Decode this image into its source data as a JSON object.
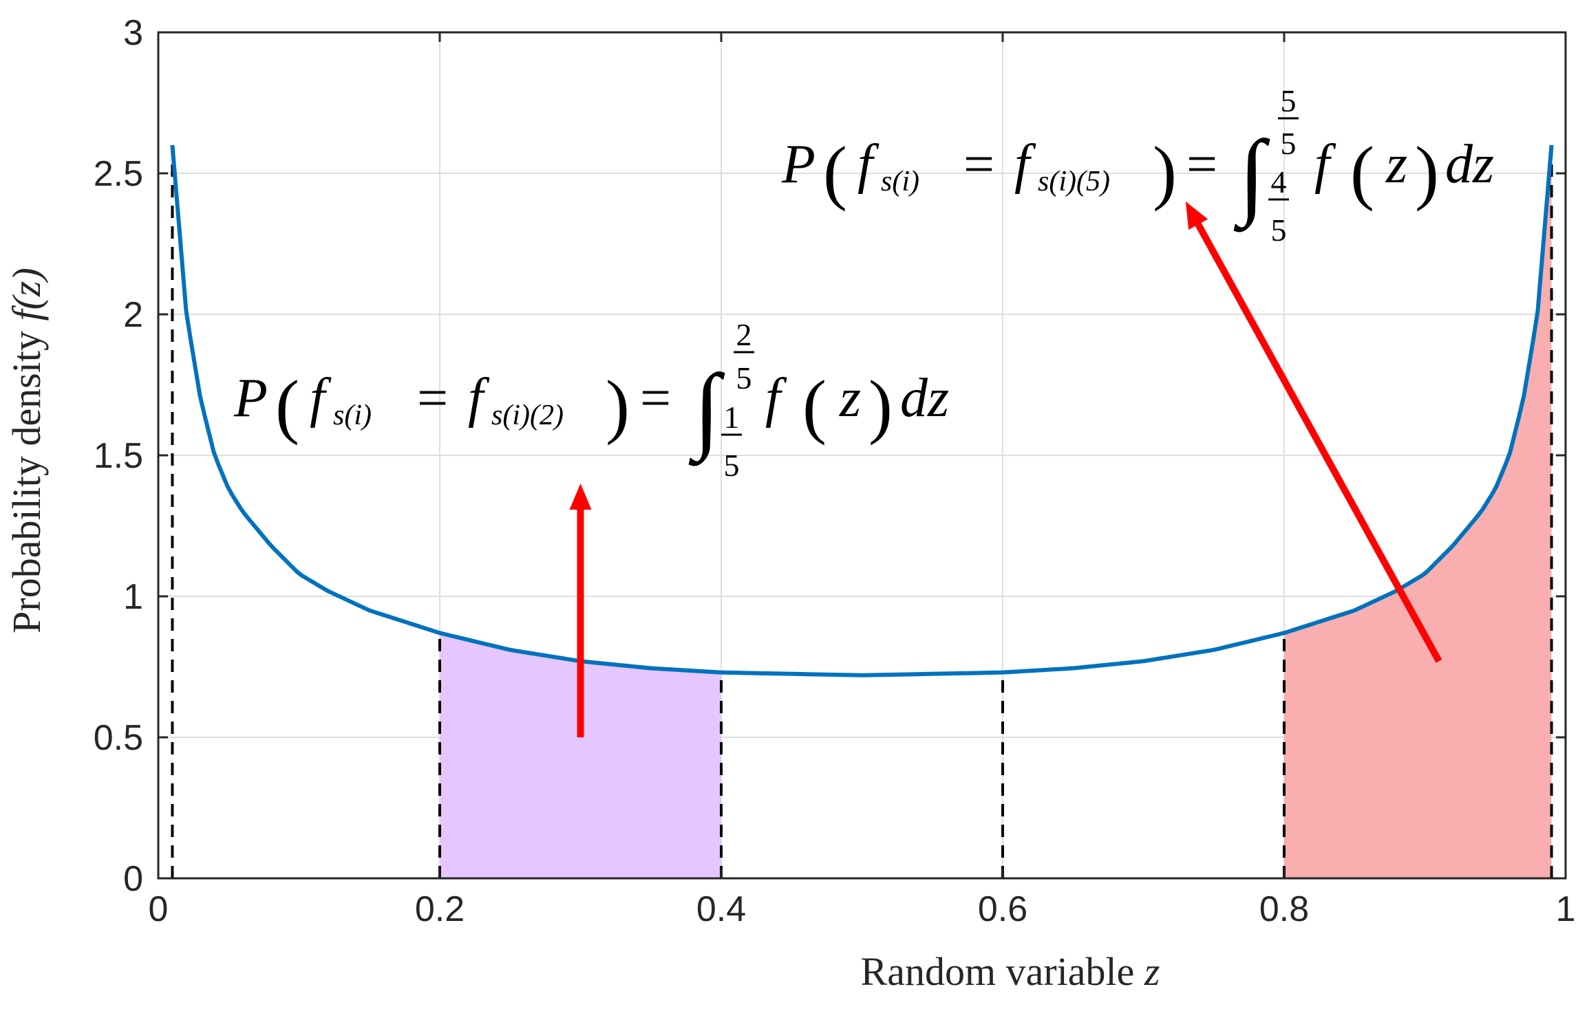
{
  "chart_data": {
    "type": "line",
    "title": "",
    "xlabel": "Random variable",
    "xlabel_var": "z",
    "ylabel": "Probability density",
    "ylabel_fn": "f(z)",
    "xlim": [
      0,
      1
    ],
    "ylim": [
      0,
      3
    ],
    "grid": true,
    "x_ticks": [
      0,
      0.2,
      0.4,
      0.6,
      0.8,
      1
    ],
    "x_tick_labels": [
      "0",
      "0.2",
      "0.4",
      "0.6",
      "0.8",
      "1"
    ],
    "y_ticks": [
      0,
      0.5,
      1,
      1.5,
      2,
      2.5,
      3
    ],
    "y_tick_labels": [
      "0",
      "0.5",
      "1",
      "1.5",
      "2",
      "2.5",
      "3"
    ],
    "series": [
      {
        "color": "#0072BD",
        "x": [
          0.01,
          0.02,
          0.03,
          0.04,
          0.05,
          0.06,
          0.08,
          0.1,
          0.12,
          0.15,
          0.2,
          0.25,
          0.3,
          0.35,
          0.4,
          0.45,
          0.5,
          0.55,
          0.6,
          0.65,
          0.7,
          0.75,
          0.8,
          0.85,
          0.88,
          0.9,
          0.92,
          0.94,
          0.95,
          0.96,
          0.97,
          0.98,
          0.99
        ],
        "y": [
          2.6,
          2.0,
          1.7,
          1.5,
          1.38,
          1.3,
          1.18,
          1.08,
          1.02,
          0.95,
          0.87,
          0.81,
          0.77,
          0.745,
          0.73,
          0.725,
          0.72,
          0.725,
          0.73,
          0.745,
          0.77,
          0.81,
          0.87,
          0.95,
          1.02,
          1.08,
          1.18,
          1.3,
          1.38,
          1.5,
          1.7,
          2.0,
          2.6
        ]
      }
    ],
    "vertical_dashed_lines": [
      0.01,
      0.2,
      0.4,
      0.6,
      0.8,
      0.99
    ],
    "shaded_regions": [
      {
        "from": 0.2,
        "to": 0.4,
        "color": "#E6C6FF"
      },
      {
        "from": 0.8,
        "to": 0.99,
        "color": "#F9AFAF"
      }
    ],
    "annotations": [
      {
        "prob": "P",
        "lhs": "f",
        "lhs_sub": "s(i)",
        "eq": "=",
        "rhs": "f",
        "rhs_sub": "s(i)(2)",
        "integral_upper_num": "2",
        "integral_upper_den": "5",
        "integral_lower_num": "1",
        "integral_lower_den": "5",
        "integrand": "f",
        "var": "z",
        "d": "dz",
        "arrow_from": [
          0.3,
          0.5
        ],
        "arrow_to": [
          0.3,
          1.4
        ]
      },
      {
        "prob": "P",
        "lhs": "f",
        "lhs_sub": "s(i)",
        "eq": "=",
        "rhs": "f",
        "rhs_sub": "s(i)(5)",
        "integral_upper_num": "5",
        "integral_upper_den": "5",
        "integral_lower_num": "4",
        "integral_lower_den": "5",
        "integrand": "f",
        "var": "z",
        "d": "dz",
        "arrow_from": [
          0.91,
          0.77
        ],
        "arrow_to": [
          0.73,
          2.4
        ]
      }
    ],
    "colors": {
      "line": "#0072BD",
      "arrow": "#FF0000",
      "grid": "#DEDEDE"
    }
  }
}
